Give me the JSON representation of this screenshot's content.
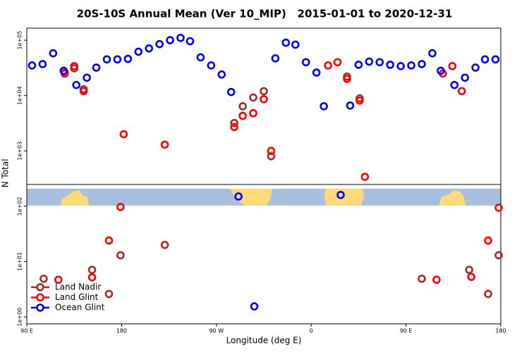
{
  "chart_data": {
    "type": "scatter",
    "title": "20S-10S Annual Mean (Ver 10_MIP)   2015-01-01 to 2020-12-31",
    "xlabel": "Longitude (deg E)",
    "ylabel": "N Total",
    "xlim": [
      90,
      540
    ],
    "xticks": [
      {
        "value": 90,
        "label": "90 E"
      },
      180,
      {
        "value": 270,
        "label": "90 W"
      },
      {
        "value": 360,
        "label": "0"
      },
      {
        "value": 450,
        "label": "90 E"
      },
      {
        "value": 540,
        "label": "180"
      }
    ],
    "ylim": [
      0.75,
      165000
    ],
    "ylog": true,
    "yticks": [
      {
        "value": 1,
        "label": "1e+00"
      },
      {
        "value": 10,
        "label": "1e+01"
      },
      {
        "value": 100,
        "label": "1e+02"
      },
      {
        "value": 1000,
        "label": "1e+03"
      },
      {
        "value": 10000,
        "label": "1e+04"
      },
      {
        "value": 100000,
        "label": "1e+05"
      }
    ],
    "legend": "lower left",
    "series": [
      {
        "name": "Land Nadir",
        "color": "#a52a2a",
        "x": [
          106,
          126,
          135,
          144,
          152,
          168,
          179,
          221,
          287,
          295,
          305,
          315,
          322,
          394,
          406,
          465,
          510,
          528,
          538
        ],
        "values": [
          4.9,
          26000,
          31000,
          13000,
          7.1,
          2.6,
          13,
          20,
          3200,
          6400,
          9200,
          12000,
          800,
          22000,
          8900,
          4.9,
          7.1,
          2.6,
          13
        ]
      },
      {
        "name": "Land Glint",
        "color": "#ff0000",
        "x": [
          126,
          135,
          144,
          168,
          179,
          182,
          221,
          287,
          295,
          305,
          315,
          322,
          376,
          385,
          394,
          406,
          411,
          485,
          494,
          503,
          528,
          538,
          152,
          120,
          479,
          512
        ],
        "values": [
          25000,
          34000,
          12000,
          24,
          97,
          2000,
          1300,
          2700,
          4300,
          4800,
          8600,
          1000,
          35000,
          40000,
          20000,
          8100,
          340,
          25000,
          34000,
          12000,
          24,
          94,
          5.2,
          4.7,
          4.7,
          5.3
        ]
      },
      {
        "name": "Ocean Glint",
        "color": "#0000ff",
        "x": [
          95,
          105,
          115,
          125,
          137,
          147,
          156,
          166,
          176,
          186,
          196,
          206,
          216,
          226,
          236,
          245,
          255,
          265,
          275,
          284,
          291,
          306,
          326,
          336,
          345,
          355,
          365,
          372,
          388,
          397,
          405,
          415,
          425,
          435,
          445,
          455,
          465,
          475,
          483,
          496,
          506,
          516,
          525,
          535
        ],
        "values": [
          35000,
          37000,
          58000,
          28000,
          15500,
          21000,
          32000,
          45000,
          45000,
          46000,
          62000,
          71000,
          85000,
          100000,
          110000,
          96000,
          49000,
          35000,
          24000,
          11600,
          150,
          1.55,
          47000,
          90000,
          83000,
          40000,
          26000,
          6400,
          160,
          6600,
          36000,
          41000,
          40000,
          36000,
          34000,
          35000,
          37000,
          58000,
          28000,
          15500,
          21000,
          32000,
          45000,
          45000
        ]
      }
    ]
  }
}
